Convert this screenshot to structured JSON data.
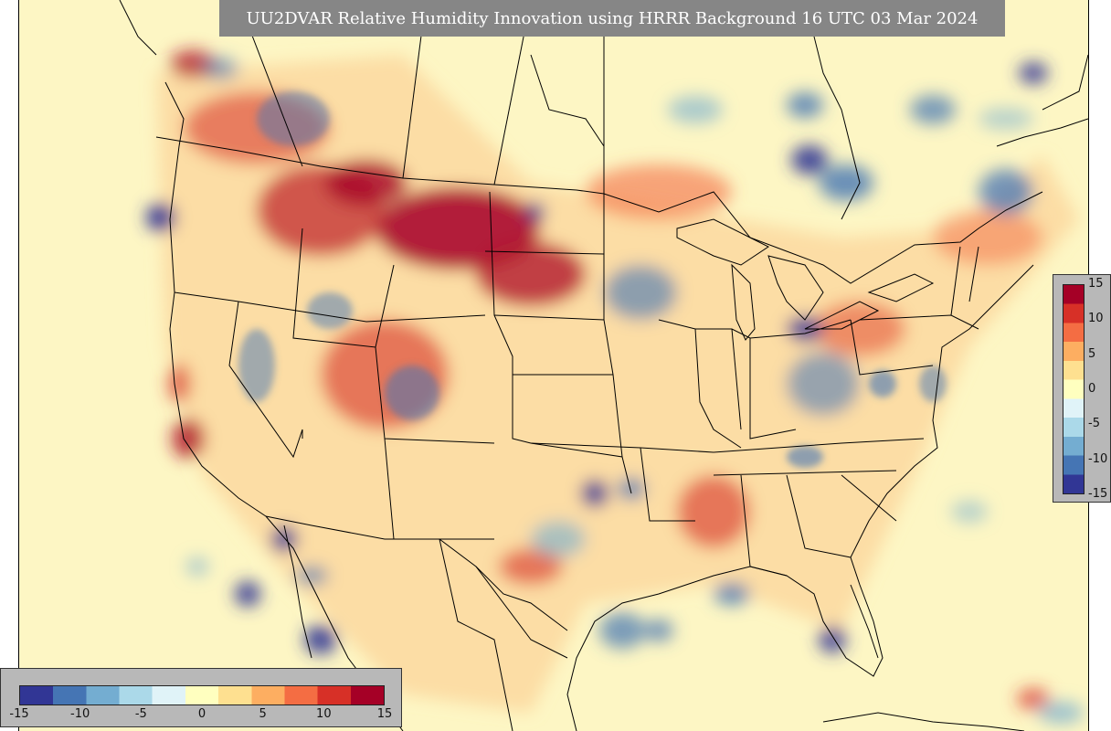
{
  "title": "UU2DVAR Relative Humidity Innovation using HRRR Background 16 UTC 03 Mar 2024",
  "colorbar": {
    "min": -15,
    "max": 15,
    "colors": [
      "#313695",
      "#4575b4",
      "#74add1",
      "#abd9e9",
      "#e0f3f8",
      "#ffffbf",
      "#fee090",
      "#fdae61",
      "#f46d43",
      "#d73027",
      "#a50026"
    ],
    "right_ticks": [
      "15",
      "10",
      "5",
      "0",
      "-5",
      "-10",
      "-15"
    ],
    "bottom_ticks": [
      "-15",
      "-10",
      "-5",
      "0",
      "5",
      "10",
      "15"
    ]
  },
  "map": {
    "background_color": "#fdf6c4",
    "boundary_color": "#000000"
  }
}
